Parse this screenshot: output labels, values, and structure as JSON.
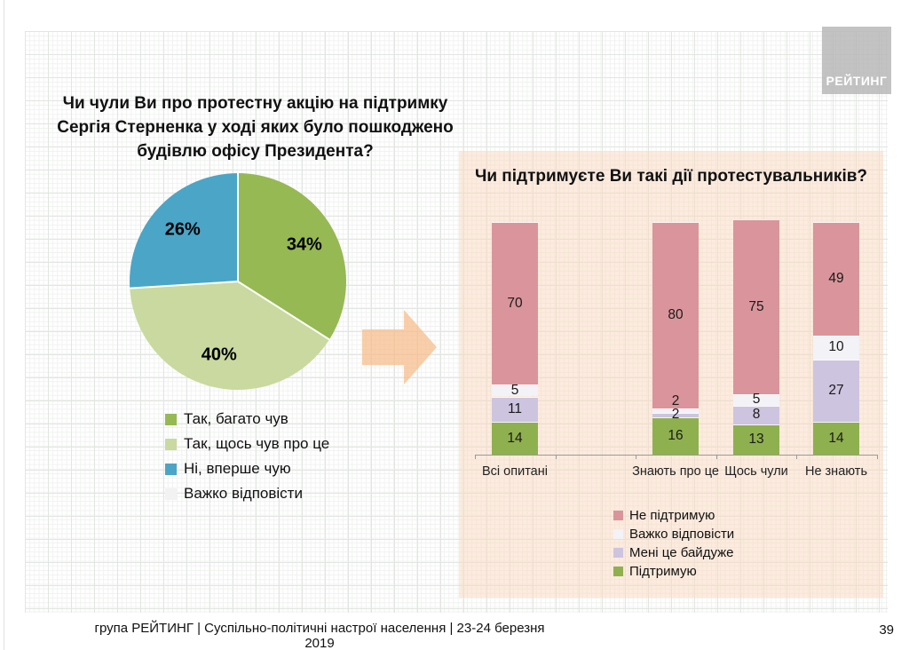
{
  "slide": {
    "logo_text": "РЕЙТИНГ",
    "footer": "група РЕЙТИНГ | Суспільно-політичні настрої населення  | 23-24 березня 2019",
    "page_number": "39"
  },
  "colors": {
    "pie_green": "#96B953",
    "pie_light_green": "#C9D9A0",
    "pie_blue": "#4BA5C6",
    "neutral_white": "#F2F2F2",
    "bar_rose": "#D9959B",
    "bar_white": "#F2F2F7",
    "bar_lavender": "#CDC4E0",
    "bar_green": "#8FB04F",
    "panel_peach": "#FBEBDE",
    "arrow_peach": "#F8CBA2"
  },
  "chart_data": [
    {
      "type": "pie",
      "title": "Чи чули Ви про протестну акцію на підтримку Сергія Стерненка у ході яких було пошкоджено будівлю офісу Президента?",
      "labels": [
        "Так, багато чув",
        "Так, щось чув про це",
        "Ні, вперше чую",
        "Важко відповісти"
      ],
      "values": [
        34,
        40,
        26,
        0
      ],
      "display_labels": [
        "34%",
        "40%",
        "26%",
        ""
      ],
      "colors": [
        "#96B953",
        "#C9D9A0",
        "#4BA5C6",
        "#F2F2F2"
      ],
      "start_angle_deg": 0,
      "direction": "clockwise",
      "legend_position": "bottom-left"
    },
    {
      "type": "bar",
      "stacked": true,
      "units": "percent",
      "title": "Чи підтримуєте Ви такі дії протестувальників?",
      "categories": [
        "Всі опитані",
        "Знають про це",
        "Щось чули",
        "Не знають"
      ],
      "series": [
        {
          "name": "Не підтримую",
          "color": "#D9959B",
          "values": [
            70,
            80,
            75,
            49
          ]
        },
        {
          "name": "Важко відповісти",
          "color": "#F2F2F7",
          "values": [
            5,
            2,
            5,
            10
          ]
        },
        {
          "name": "Мені це байдуже",
          "color": "#CDC4E0",
          "values": [
            11,
            2,
            8,
            27
          ]
        },
        {
          "name": "Підтримую",
          "color": "#8FB04F",
          "values": [
            14,
            16,
            13,
            14
          ]
        }
      ],
      "ylim": [
        0,
        100
      ],
      "grid": false,
      "legend_position": "bottom-right"
    }
  ]
}
